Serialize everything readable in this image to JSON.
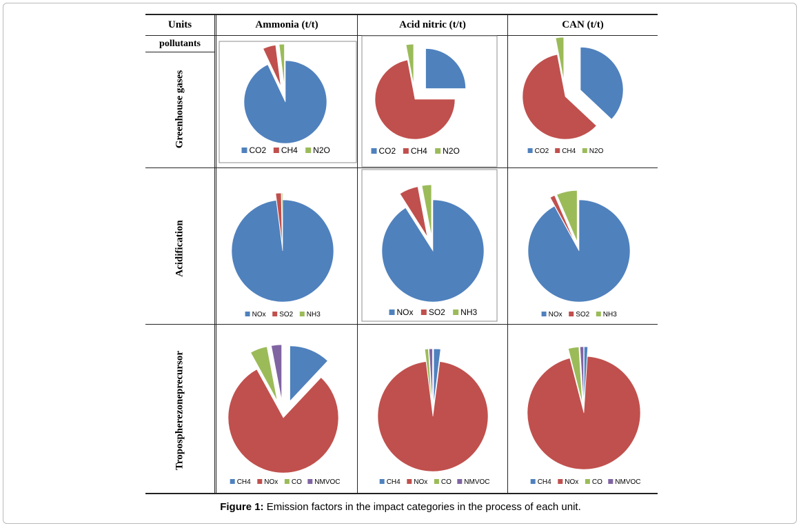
{
  "header": {
    "col_units": "Units",
    "col_ammonia": "Ammonia (t/t)",
    "col_nitric": "Acid nitric (t/t)",
    "col_can": "CAN (t/t)",
    "subheader": "pollutants"
  },
  "rows": {
    "greenhouse": "Greenhouse gases",
    "acidification": "Acidification",
    "troposphere": "Tropospherezoneprecursor"
  },
  "caption": {
    "label": "Figure 1:",
    "text": " Emission factors in the impact categories in the process of each unit."
  },
  "colors": {
    "blue": "#4f81bd",
    "red": "#c0504d",
    "green": "#9bbb59",
    "purple": "#8064a2"
  },
  "chart_data": [
    {
      "type": "pie",
      "row": "Greenhouse gases",
      "column": "Ammonia (t/t)",
      "categories": [
        "CO2",
        "CH4",
        "N2O"
      ],
      "values": [
        93,
        5,
        2
      ],
      "exploded": [
        "CH4",
        "N2O"
      ]
    },
    {
      "type": "pie",
      "row": "Greenhouse gases",
      "column": "Acid nitric (t/t)",
      "categories": [
        "CO2",
        "CH4",
        "N2O"
      ],
      "values": [
        25,
        72,
        3
      ],
      "exploded": [
        "CO2",
        "N2O"
      ]
    },
    {
      "type": "pie",
      "row": "Greenhouse gases",
      "column": "CAN (t/t)",
      "categories": [
        "CO2",
        "CH4",
        "N2O"
      ],
      "values": [
        37,
        60,
        3
      ],
      "exploded": [
        "CO2",
        "N2O"
      ]
    },
    {
      "type": "pie",
      "row": "Acidification",
      "column": "Ammonia (t/t)",
      "categories": [
        "NOx",
        "SO2",
        "NH3"
      ],
      "values": [
        98,
        1.7,
        0.3
      ],
      "exploded": [
        "SO2",
        "NH3"
      ]
    },
    {
      "type": "pie",
      "row": "Acidification",
      "column": "Acid nitric (t/t)",
      "categories": [
        "NOx",
        "SO2",
        "NH3"
      ],
      "values": [
        91,
        6,
        3
      ],
      "exploded": [
        "SO2",
        "NH3"
      ]
    },
    {
      "type": "pie",
      "row": "Acidification",
      "column": "CAN (t/t)",
      "categories": [
        "NOx",
        "SO2",
        "NH3"
      ],
      "values": [
        92,
        1.5,
        6.5
      ],
      "exploded": [
        "SO2",
        "NH3"
      ]
    },
    {
      "type": "pie",
      "row": "Tropospherezoneprecursor",
      "column": "Ammonia (t/t)",
      "categories": [
        "CH4",
        "NOx",
        "CO",
        "NMVOC"
      ],
      "values": [
        12,
        80,
        5,
        3
      ],
      "exploded": [
        "CH4",
        "CO",
        "NMVOC"
      ]
    },
    {
      "type": "pie",
      "row": "Tropospherezoneprecursor",
      "column": "Acid nitric (t/t)",
      "categories": [
        "CH4",
        "NOx",
        "CO",
        "NMVOC"
      ],
      "values": [
        2,
        96,
        1,
        1
      ],
      "exploded": [
        "CH4",
        "CO",
        "NMVOC"
      ]
    },
    {
      "type": "pie",
      "row": "Tropospherezoneprecursor",
      "column": "CAN (t/t)",
      "categories": [
        "CH4",
        "NOx",
        "CO",
        "NMVOC"
      ],
      "values": [
        1,
        95,
        3,
        1
      ],
      "exploded": [
        "CH4",
        "CO",
        "NMVOC"
      ]
    }
  ]
}
